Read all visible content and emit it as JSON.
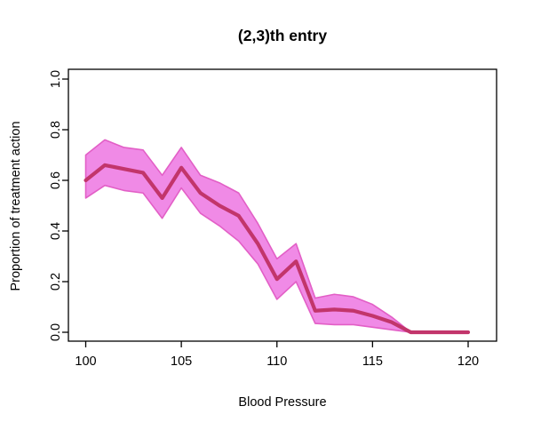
{
  "title": "(2,3)th entry",
  "x_axis_label": "Blood Pressure",
  "y_axis_label": "Proportion of treatment action",
  "chart_data": {
    "type": "line",
    "title": "(2,3)th entry",
    "xlabel": "Blood Pressure",
    "ylabel": "Proportion of treatment action",
    "x": [
      100,
      101,
      102,
      103,
      104,
      105,
      106,
      107,
      108,
      109,
      110,
      111,
      112,
      113,
      114,
      115,
      116,
      117,
      118,
      119,
      120
    ],
    "series": [
      {
        "name": "proportion of treatment action (mean line)",
        "values": [
          0.6,
          0.66,
          0.645,
          0.63,
          0.53,
          0.65,
          0.55,
          0.5,
          0.46,
          0.35,
          0.21,
          0.28,
          0.085,
          0.09,
          0.085,
          0.065,
          0.04,
          0.0,
          0.0,
          0.0,
          0.0
        ]
      },
      {
        "name": "band upper bound",
        "values": [
          0.7,
          0.76,
          0.73,
          0.72,
          0.62,
          0.73,
          0.62,
          0.59,
          0.55,
          0.43,
          0.29,
          0.35,
          0.135,
          0.15,
          0.14,
          0.11,
          0.06,
          0.0,
          0.0,
          0.0,
          0.0
        ]
      },
      {
        "name": "band lower bound",
        "values": [
          0.53,
          0.58,
          0.56,
          0.55,
          0.45,
          0.57,
          0.47,
          0.42,
          0.36,
          0.27,
          0.13,
          0.2,
          0.035,
          0.03,
          0.03,
          0.02,
          0.01,
          0.0,
          0.0,
          0.0,
          0.0
        ]
      }
    ],
    "x_ticks": [
      "100",
      "105",
      "110",
      "115",
      "120"
    ],
    "x_tick_values": [
      100,
      105,
      110,
      115,
      120
    ],
    "y_ticks": [
      "0.0",
      "0.2",
      "0.4",
      "0.6",
      "0.8",
      "1.0"
    ],
    "y_tick_values": [
      0.0,
      0.2,
      0.4,
      0.6,
      0.8,
      1.0
    ],
    "xlim": [
      99.1,
      121.4
    ],
    "ylim": [
      -0.04,
      1.04
    ],
    "grid": false,
    "legend": "none",
    "colors": {
      "band_fill": "#f08ae6",
      "band_border": "#e25fc6",
      "line": "#c2356b",
      "axis": "#000000",
      "background": "#ffffff"
    }
  }
}
